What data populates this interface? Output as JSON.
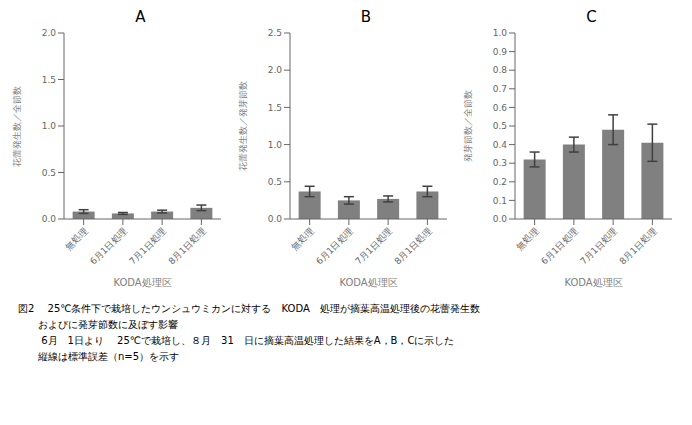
{
  "chart_data": [
    {
      "type": "bar",
      "title": "A",
      "categories": [
        "無処理",
        "6月1日処理",
        "7月1日処理",
        "8月1日処理"
      ],
      "values": [
        0.08,
        0.06,
        0.08,
        0.12
      ],
      "errors": [
        0.02,
        0.01,
        0.015,
        0.03
      ],
      "color": "#808080",
      "xlabel": "KODA処理区",
      "ylabel": "花蕾発生数／全節数",
      "ylim": [
        0,
        2.0
      ],
      "yticks": [
        {
          "value": 0,
          "label": "0.0"
        },
        0.5,
        {
          "value": 1.0,
          "label": "1.0"
        },
        1.5,
        {
          "value": 2.0,
          "label": "2.0"
        }
      ],
      "grid": false
    },
    {
      "type": "bar",
      "title": "B",
      "categories": [
        "無処理",
        "6月1日処理",
        "7月1日処理",
        "8月1日処理"
      ],
      "values": [
        0.37,
        0.25,
        0.27,
        0.37
      ],
      "errors": [
        0.07,
        0.05,
        0.04,
        0.07
      ],
      "color": "#808080",
      "xlabel": "KODA処理区",
      "ylabel": "花蕾発生数／発芽節数",
      "ylim": [
        0,
        2.5
      ],
      "yticks": [
        {
          "value": 0,
          "label": "0.0"
        },
        0.5,
        {
          "value": 1.0,
          "label": "1.0"
        },
        1.5,
        {
          "value": 2.0,
          "label": "2.0"
        },
        2.5
      ],
      "grid": false
    },
    {
      "type": "bar",
      "title": "C",
      "categories": [
        "無処理",
        "6月1日処理",
        "7月1日処理",
        "8月1日処理"
      ],
      "values": [
        0.32,
        0.4,
        0.48,
        0.41
      ],
      "errors": [
        0.04,
        0.04,
        0.08,
        0.1
      ],
      "color": "#808080",
      "xlabel": "KODA処理区",
      "ylabel": "発芽節数／全節数",
      "ylim": [
        0,
        1.0
      ],
      "yticks": [
        {
          "value": 0,
          "label": "0.0"
        },
        0.1,
        0.2,
        0.3,
        0.4,
        0.5,
        0.6,
        0.7,
        0.8,
        0.9,
        {
          "value": 1.0,
          "label": "1.0"
        }
      ],
      "grid": false
    }
  ],
  "caption": [
    "図2　 25℃条件下で栽培したウンシュウミカンに対する　KODA　処理が摘葉高温処理後の花蕾発生数",
    "　　およびに発芽節数に及ぼす影響",
    "　　 6月　1日より　 25℃で栽培し、８月　31　日に摘葉高温処理した結果をA，B，Cに示した",
    "　　縦線は標準誤差（n=5）を示す"
  ]
}
